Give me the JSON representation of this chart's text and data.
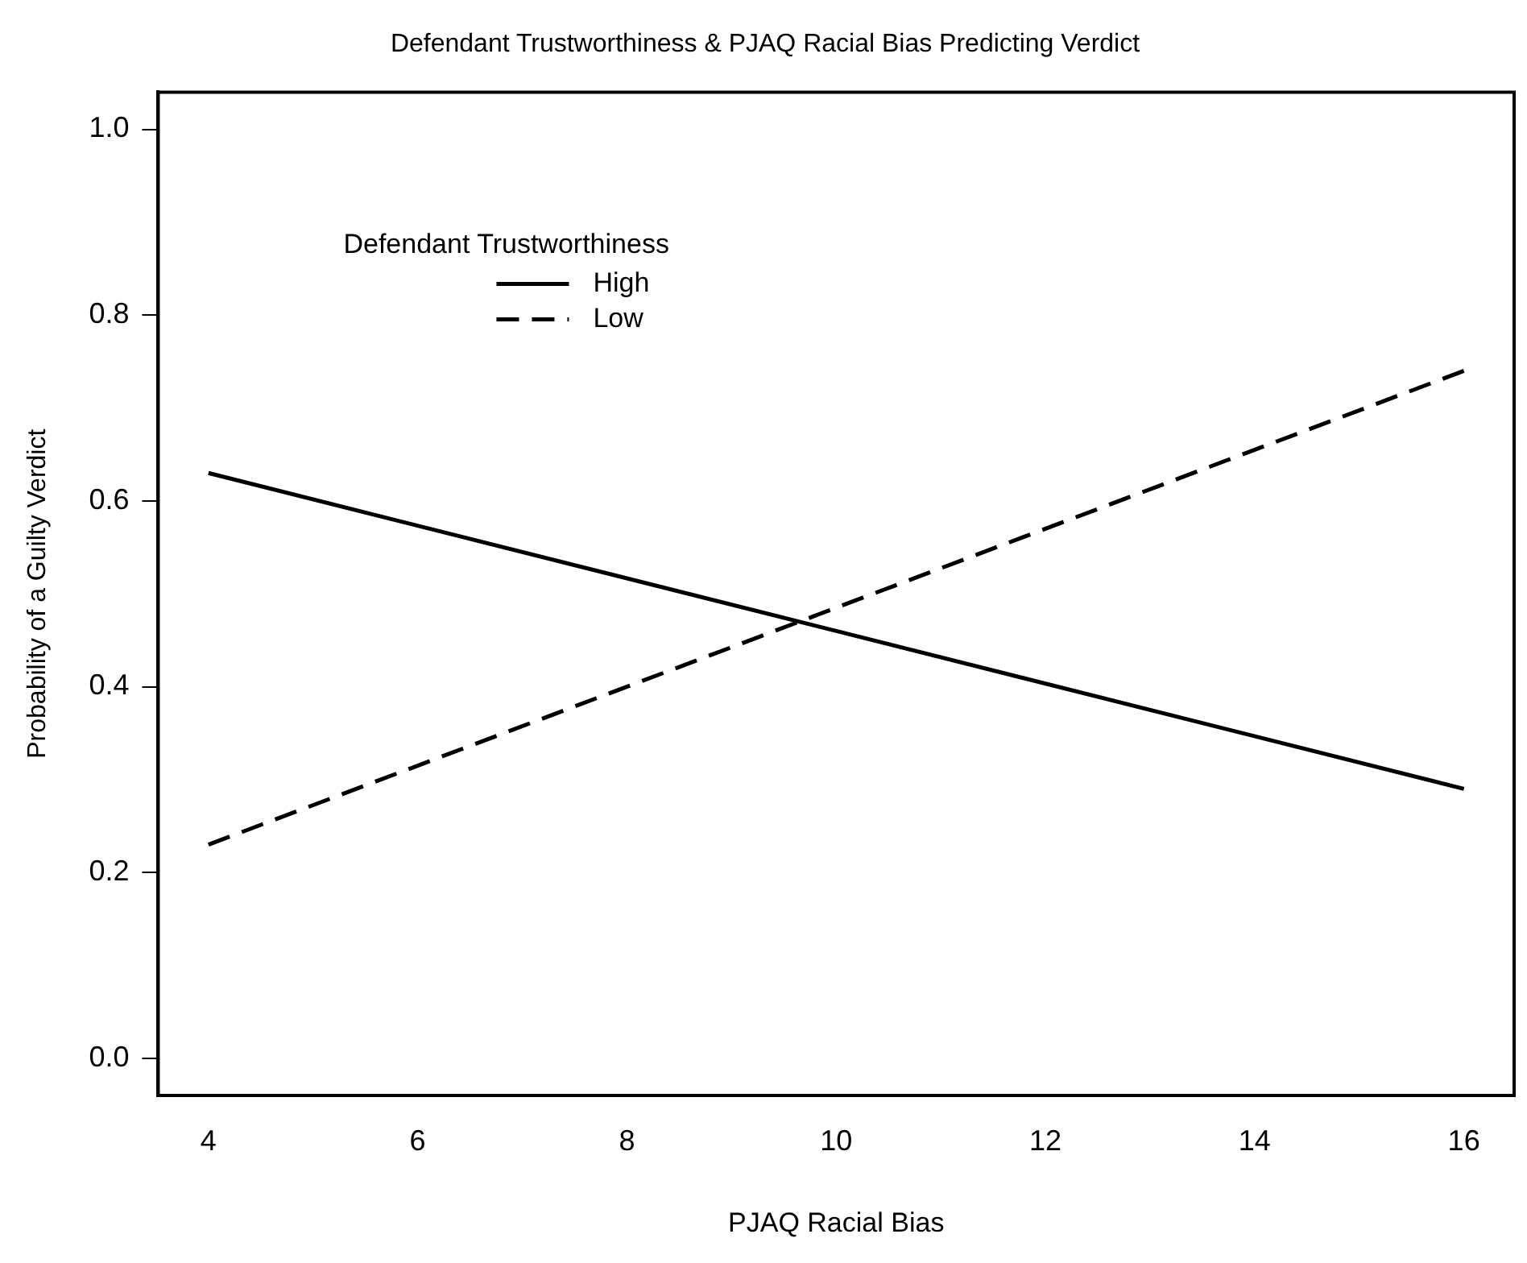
{
  "chart_data": {
    "type": "line",
    "title": "Defendant Trustworthiness & PJAQ Racial Bias Predicting Verdict",
    "xlabel": "PJAQ Racial Bias",
    "ylabel": "Probability of a Guilty Verdict",
    "legend_title": "Defendant Trustworthiness",
    "x": [
      4,
      16
    ],
    "series": [
      {
        "name": "High",
        "color": "#000000",
        "line_style": "solid",
        "values": [
          0.63,
          0.29
        ]
      },
      {
        "name": "Low",
        "color": "#000000",
        "line_style": "dashed",
        "values": [
          0.23,
          0.74
        ]
      }
    ],
    "xlim": [
      3.52,
      16.48
    ],
    "xticks": [
      4,
      6,
      8,
      10,
      12,
      14,
      16
    ],
    "ylim": [
      -0.04,
      1.04
    ],
    "yticks": [
      {
        "value": 0,
        "label": "0.0"
      },
      {
        "value": 0.2,
        "label": "0.2"
      },
      {
        "value": 0.4,
        "label": "0.4"
      },
      {
        "value": 0.6,
        "label": "0.6"
      },
      {
        "value": 0.8,
        "label": "0.8"
      },
      {
        "value": 1,
        "label": "1.0"
      }
    ],
    "grid": false,
    "legend": "top left",
    "marker": "none"
  }
}
